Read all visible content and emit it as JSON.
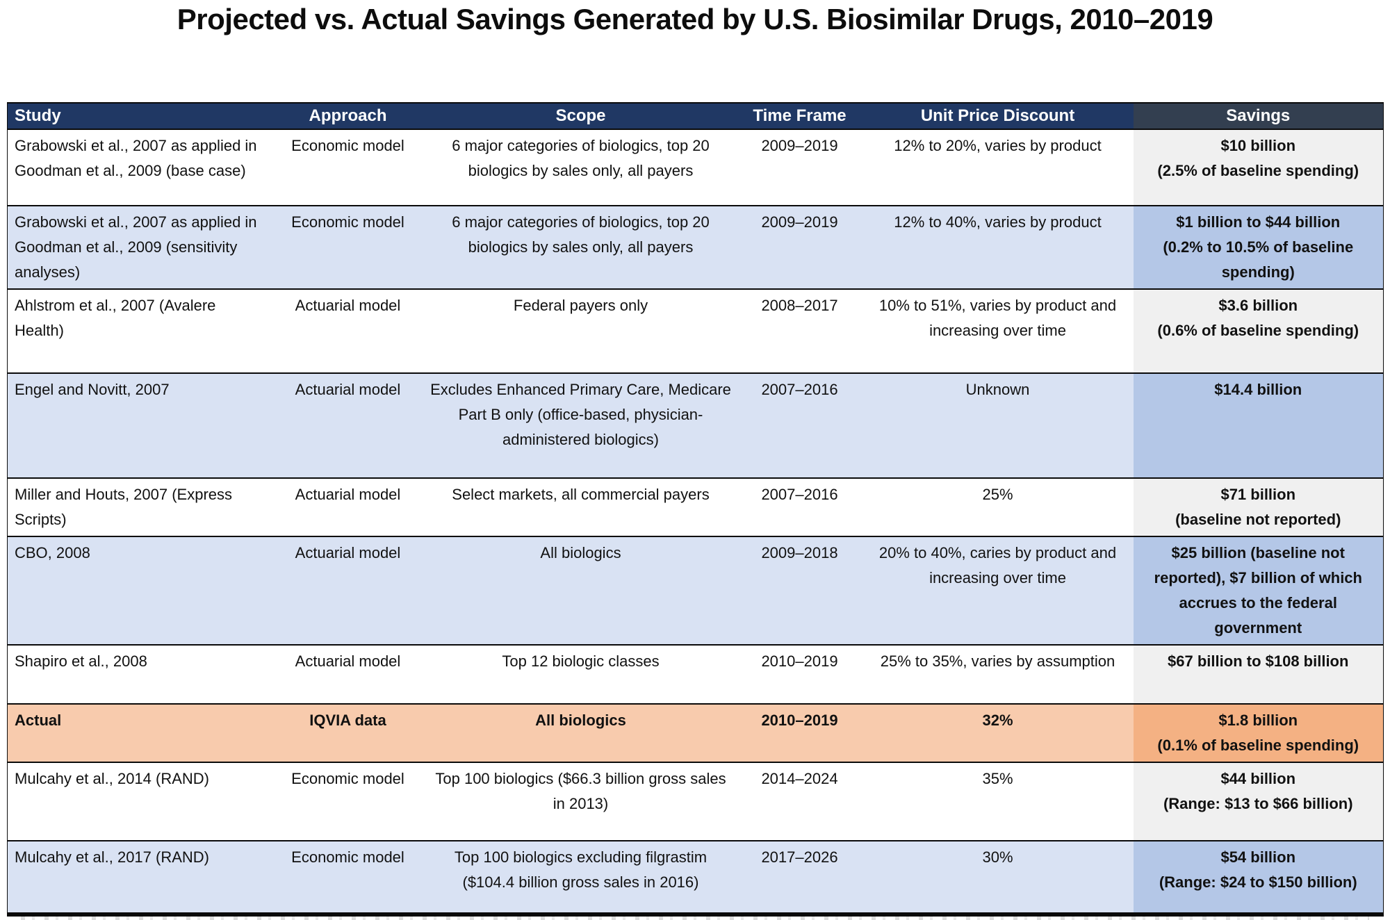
{
  "title": "Projected vs. Actual Savings Generated by U.S. Biosimilar Drugs, 2010–2019",
  "colors": {
    "header_bg": "#203864",
    "savings_header_bg": "#333F50",
    "alt_row_bg": "#D9E2F3",
    "alt_row_savings_bg": "#B4C7E7",
    "savings_col_bg": "#F0F0F0",
    "actual_row_bg": "#F8CBAD",
    "actual_row_savings_bg": "#F4B183",
    "header_text": "#FFFFFF",
    "body_text": "#111111"
  },
  "chart_data": {
    "type": "table",
    "title": "Projected vs. Actual Savings Generated by U.S. Biosimilar Drugs, 2010–2019",
    "columns": [
      "Study",
      "Approach",
      "Scope",
      "Time Frame",
      "Unit Price Discount",
      "Savings"
    ],
    "rows": [
      {
        "study": "Grabowski et al., 2007 as applied in Goodman et al., 2009 (base case)",
        "approach": "Economic model",
        "scope": "6 major categories of biologics, top 20 biologics by sales only, all payers",
        "time_frame": "2009–2019",
        "unit_price_discount": "12% to 20%, varies by product",
        "savings": "$10 billion\n(2.5% of baseline spending)",
        "highlight": false
      },
      {
        "study": "Grabowski et al., 2007 as applied in Goodman et al., 2009 (sensitivity analyses)",
        "approach": "Economic model",
        "scope": "6 major categories of biologics, top 20 biologics by sales only, all payers",
        "time_frame": "2009–2019",
        "unit_price_discount": "12% to 40%, varies by product",
        "savings": "$1 billion to $44 billion\n(0.2% to 10.5% of baseline spending)",
        "highlight": false
      },
      {
        "study": "Ahlstrom et al., 2007 (Avalere Health)",
        "approach": "Actuarial model",
        "scope": "Federal payers only",
        "time_frame": "2008–2017",
        "unit_price_discount": "10% to 51%, varies by product and increasing over time",
        "savings": "$3.6 billion\n(0.6% of baseline spending)",
        "highlight": false
      },
      {
        "study": "Engel and Novitt, 2007",
        "approach": "Actuarial model",
        "scope": "Excludes Enhanced Primary Care, Medicare Part B only (office-based, physician-administered biologics)",
        "time_frame": "2007–2016",
        "unit_price_discount": "Unknown",
        "savings": "$14.4 billion",
        "highlight": false
      },
      {
        "study": "Miller and Houts, 2007 (Express Scripts)",
        "approach": "Actuarial model",
        "scope": "Select markets, all commercial payers",
        "time_frame": "2007–2016",
        "unit_price_discount": "25%",
        "savings": "$71 billion\n(baseline not reported)",
        "highlight": false
      },
      {
        "study": "CBO, 2008",
        "approach": "Actuarial model",
        "scope": "All biologics",
        "time_frame": "2009–2018",
        "unit_price_discount": "20% to 40%, caries by product and increasing over time",
        "savings": "$25 billion (baseline not reported), $7 billion of which accrues to the federal government",
        "highlight": false
      },
      {
        "study": "Shapiro et al., 2008",
        "approach": "Actuarial model",
        "scope": "Top 12 biologic classes",
        "time_frame": "2010–2019",
        "unit_price_discount": "25% to 35%, varies by assumption",
        "savings": "$67 billion to $108 billion",
        "highlight": false
      },
      {
        "study": "Actual",
        "approach": "IQVIA data",
        "scope": "All biologics",
        "time_frame": "2010–2019",
        "unit_price_discount": "32%",
        "savings": "$1.8 billion\n(0.1% of baseline spending)",
        "highlight": true
      },
      {
        "study": "Mulcahy et al., 2014 (RAND)",
        "approach": "Economic model",
        "scope": "Top 100 biologics ($66.3 billion gross sales in 2013)",
        "time_frame": "2014–2024",
        "unit_price_discount": "35%",
        "savings": "$44 billion\n(Range: $13 to $66 billion)",
        "highlight": false
      },
      {
        "study": "Mulcahy et al., 2017 (RAND)",
        "approach": "Economic model",
        "scope": "Top 100 biologics excluding filgrastim ($104.4 billion gross sales in 2016)",
        "time_frame": "2017–2026",
        "unit_price_discount": "30%",
        "savings": "$54 billion\n(Range: $24 to $150 billion)",
        "highlight": false
      }
    ]
  }
}
